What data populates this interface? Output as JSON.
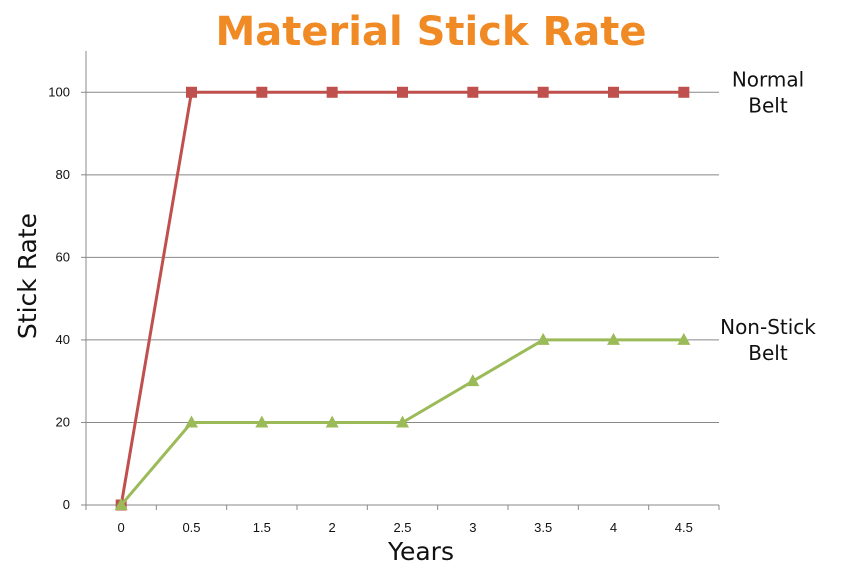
{
  "chart_data": {
    "type": "line",
    "title": "Material Stick Rate",
    "title_color": "#f08a24",
    "xlabel": "Years",
    "ylabel": "Stick Rate",
    "categories": [
      "0",
      "0.5",
      "1.5",
      "2",
      "2.5",
      "3",
      "3.5",
      "4",
      "4.5"
    ],
    "ylim": [
      0,
      110
    ],
    "yticks": [
      0,
      20,
      40,
      60,
      80,
      100
    ],
    "grid": true,
    "legend": "inline-right",
    "series": [
      {
        "name": "Normal Belt",
        "label_lines": [
          "Normal",
          "Belt"
        ],
        "color": "#c0504d",
        "marker": "square",
        "values": [
          0,
          100,
          100,
          100,
          100,
          100,
          100,
          100,
          100
        ]
      },
      {
        "name": "Non-Stick Belt",
        "label_lines": [
          "Non-Stick",
          "Belt"
        ],
        "color": "#9bbb59",
        "marker": "triangle",
        "values": [
          0,
          20,
          20,
          20,
          20,
          30,
          40,
          40,
          40
        ]
      }
    ]
  }
}
